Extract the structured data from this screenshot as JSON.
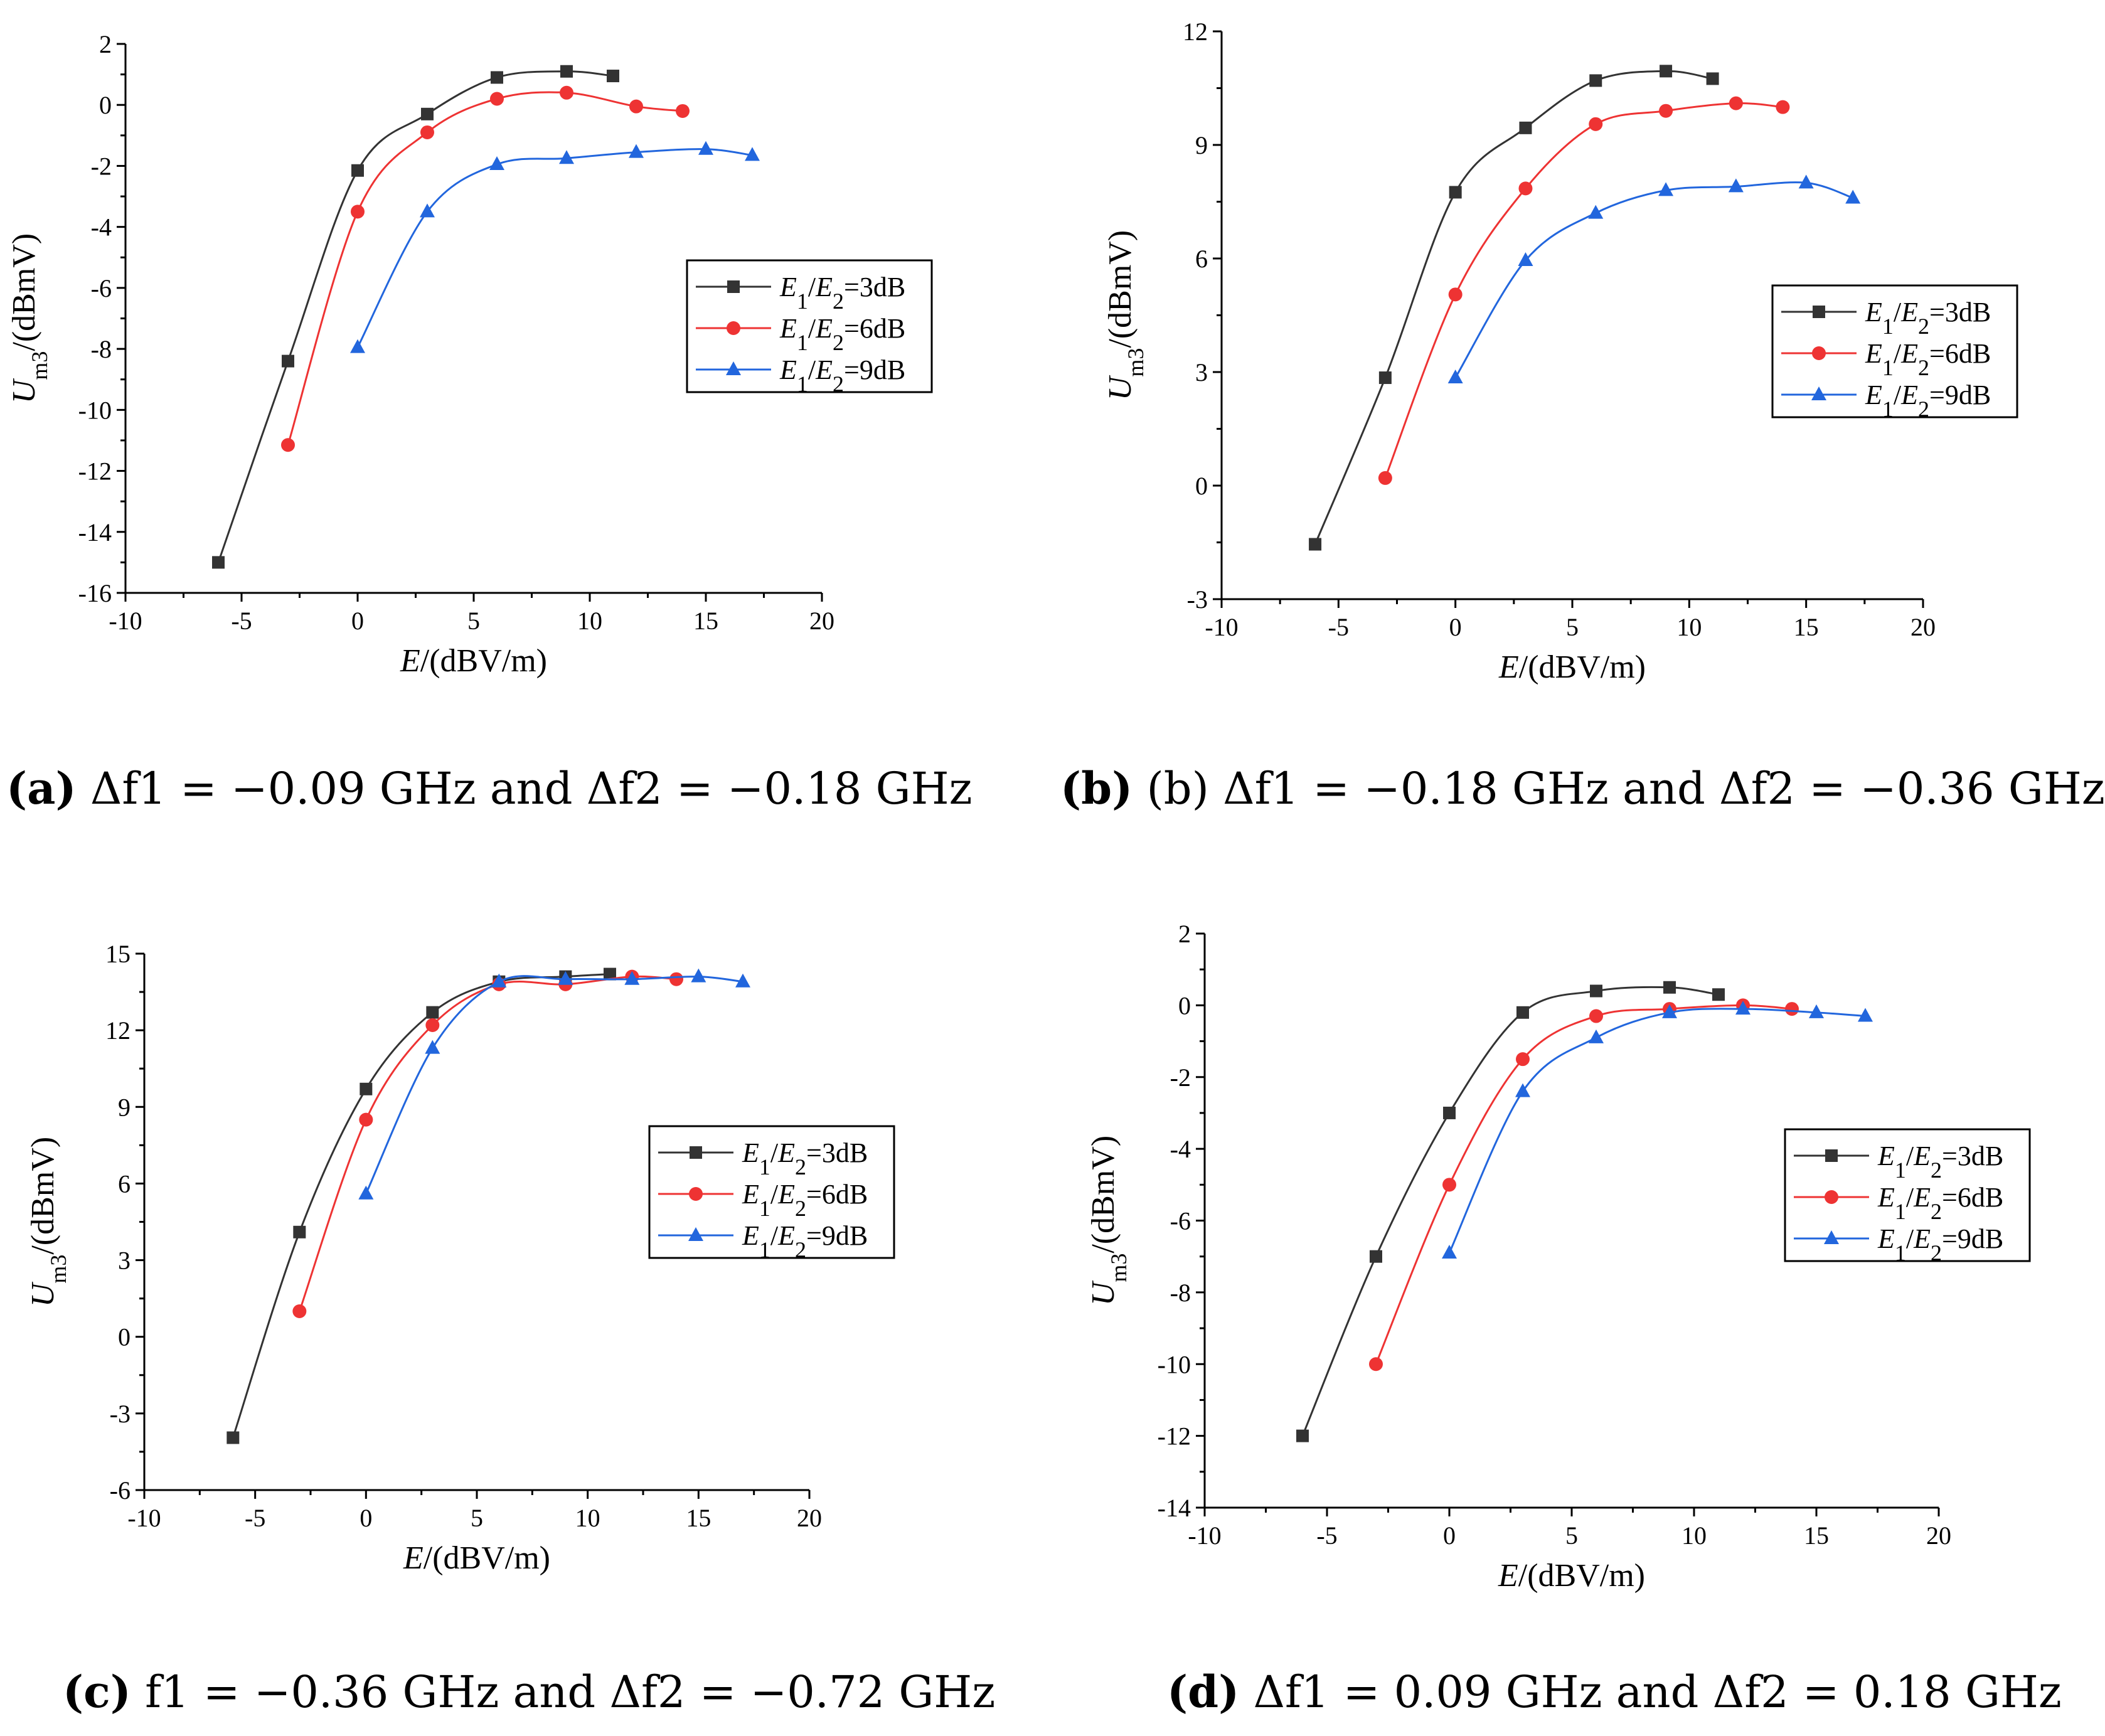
{
  "figure": {
    "colors": {
      "s1": "#333333",
      "s2": "#ee3333",
      "s3": "#2266dd"
    }
  },
  "chart_data": [
    {
      "id": "a",
      "type": "line",
      "xlabel_symbol": "E",
      "xlabel_unit": "/(dBV/m)",
      "ylabel_symbol": "U",
      "ylabel_sub": "m3",
      "ylabel_unit": "/(dBmV)",
      "xlim": [
        -10,
        20
      ],
      "ylim": [
        -16,
        2
      ],
      "xticks": [
        -10,
        -5,
        0,
        5,
        10,
        15,
        20
      ],
      "yticks": [
        -16,
        -14,
        -12,
        -10,
        -8,
        -6,
        -4,
        -2,
        0,
        2
      ],
      "legend_position": "center-right",
      "series": [
        {
          "name": "E1/E2=3dB",
          "marker": "square",
          "x": [
            -6,
            -3,
            0,
            3,
            6,
            9,
            11
          ],
          "y": [
            -15,
            -8.4,
            -2.15,
            -0.3,
            0.9,
            1.1,
            0.95
          ]
        },
        {
          "name": "E1/E2=6dB",
          "marker": "circle",
          "x": [
            -3,
            0,
            3,
            6,
            9,
            12,
            14
          ],
          "y": [
            -11.15,
            -3.5,
            -0.9,
            0.2,
            0.4,
            -0.05,
            -0.2
          ]
        },
        {
          "name": "E1/E2=9dB",
          "marker": "triangle",
          "x": [
            0,
            3,
            6,
            9,
            12,
            15,
            17
          ],
          "y": [
            -7.95,
            -3.5,
            -1.95,
            -1.75,
            -1.55,
            -1.45,
            -1.65
          ]
        }
      ],
      "caption_label": "(a)",
      "caption_text": "Δf1 = −0.09 GHz and Δf2 = −0.18 GHz"
    },
    {
      "id": "b",
      "type": "line",
      "xlabel_symbol": "E",
      "xlabel_unit": "/(dBV/m)",
      "ylabel_symbol": "U",
      "ylabel_sub": "m3",
      "ylabel_unit": "/(dBmV)",
      "xlim": [
        -10,
        20
      ],
      "ylim": [
        -3,
        12
      ],
      "xticks": [
        -10,
        -5,
        0,
        5,
        10,
        15,
        20
      ],
      "yticks": [
        -3,
        0,
        3,
        6,
        9,
        12
      ],
      "legend_position": "center-right",
      "series": [
        {
          "name": "E1/E2=3dB",
          "marker": "square",
          "x": [
            -6,
            -3,
            0,
            3,
            6,
            9,
            11
          ],
          "y": [
            -1.55,
            2.85,
            7.75,
            9.45,
            10.7,
            10.95,
            10.75
          ]
        },
        {
          "name": "E1/E2=6dB",
          "marker": "circle",
          "x": [
            -3,
            0,
            3,
            6,
            9,
            12,
            14
          ],
          "y": [
            0.2,
            5.05,
            7.85,
            9.55,
            9.9,
            10.1,
            10.0
          ]
        },
        {
          "name": "E1/E2=9dB",
          "marker": "triangle",
          "x": [
            0,
            3,
            6,
            9,
            12,
            15,
            17
          ],
          "y": [
            2.85,
            5.95,
            7.2,
            7.8,
            7.9,
            8.0,
            7.6
          ]
        }
      ],
      "caption_label": "(b)",
      "caption_text": "(b) Δf1 = −0.18 GHz and Δf2 = −0.36 GHz"
    },
    {
      "id": "c",
      "type": "line",
      "xlabel_symbol": "E",
      "xlabel_unit": "/(dBV/m)",
      "ylabel_symbol": "U",
      "ylabel_sub": "m3",
      "ylabel_unit": "/(dBmV)",
      "xlim": [
        -10,
        20
      ],
      "ylim": [
        -6,
        15
      ],
      "xticks": [
        -10,
        -5,
        0,
        5,
        10,
        15,
        20
      ],
      "yticks": [
        -6,
        -3,
        0,
        3,
        6,
        9,
        12,
        15
      ],
      "legend_position": "center-right",
      "series": [
        {
          "name": "E1/E2=3dB",
          "marker": "square",
          "x": [
            -6,
            -3,
            0,
            3,
            6,
            9,
            11
          ],
          "y": [
            -3.95,
            4.1,
            9.7,
            12.7,
            13.9,
            14.1,
            14.2
          ]
        },
        {
          "name": "E1/E2=6dB",
          "marker": "circle",
          "x": [
            -3,
            0,
            3,
            6,
            9,
            12,
            14
          ],
          "y": [
            1.0,
            8.5,
            12.2,
            13.8,
            13.8,
            14.1,
            14.0
          ]
        },
        {
          "name": "E1/E2=9dB",
          "marker": "triangle",
          "x": [
            0,
            3,
            6,
            9,
            12,
            15,
            17
          ],
          "y": [
            5.6,
            11.3,
            13.9,
            14.0,
            14.0,
            14.1,
            13.9
          ]
        }
      ],
      "caption_label": "(c)",
      "caption_text": "f1 = −0.36 GHz and Δf2 = −0.72 GHz"
    },
    {
      "id": "d",
      "type": "line",
      "xlabel_symbol": "E",
      "xlabel_unit": "/(dBV/m)",
      "ylabel_symbol": "U",
      "ylabel_sub": "m3",
      "ylabel_unit": "/(dBmV)",
      "xlim": [
        -10,
        20
      ],
      "ylim": [
        -14,
        2
      ],
      "xticks": [
        -10,
        -5,
        0,
        5,
        10,
        15,
        20
      ],
      "yticks": [
        -14,
        -12,
        -10,
        -8,
        -6,
        -4,
        -2,
        0,
        2
      ],
      "legend_position": "center-right",
      "series": [
        {
          "name": "E1/E2=3dB",
          "marker": "square",
          "x": [
            -6,
            -3,
            0,
            3,
            6,
            9,
            11
          ],
          "y": [
            -12.0,
            -7.0,
            -3.0,
            -0.2,
            0.4,
            0.5,
            0.3
          ]
        },
        {
          "name": "E1/E2=6dB",
          "marker": "circle",
          "x": [
            -3,
            0,
            3,
            6,
            9,
            12,
            14
          ],
          "y": [
            -10.0,
            -5.0,
            -1.5,
            -0.3,
            -0.1,
            0.0,
            -0.1
          ]
        },
        {
          "name": "E1/E2=9dB",
          "marker": "triangle",
          "x": [
            0,
            3,
            6,
            9,
            12,
            15,
            17
          ],
          "y": [
            -6.9,
            -2.4,
            -0.9,
            -0.2,
            -0.1,
            -0.2,
            -0.3
          ]
        }
      ],
      "caption_label": "(d)",
      "caption_text": "Δf1 = 0.09 GHz and Δf2 = 0.18 GHz"
    }
  ]
}
